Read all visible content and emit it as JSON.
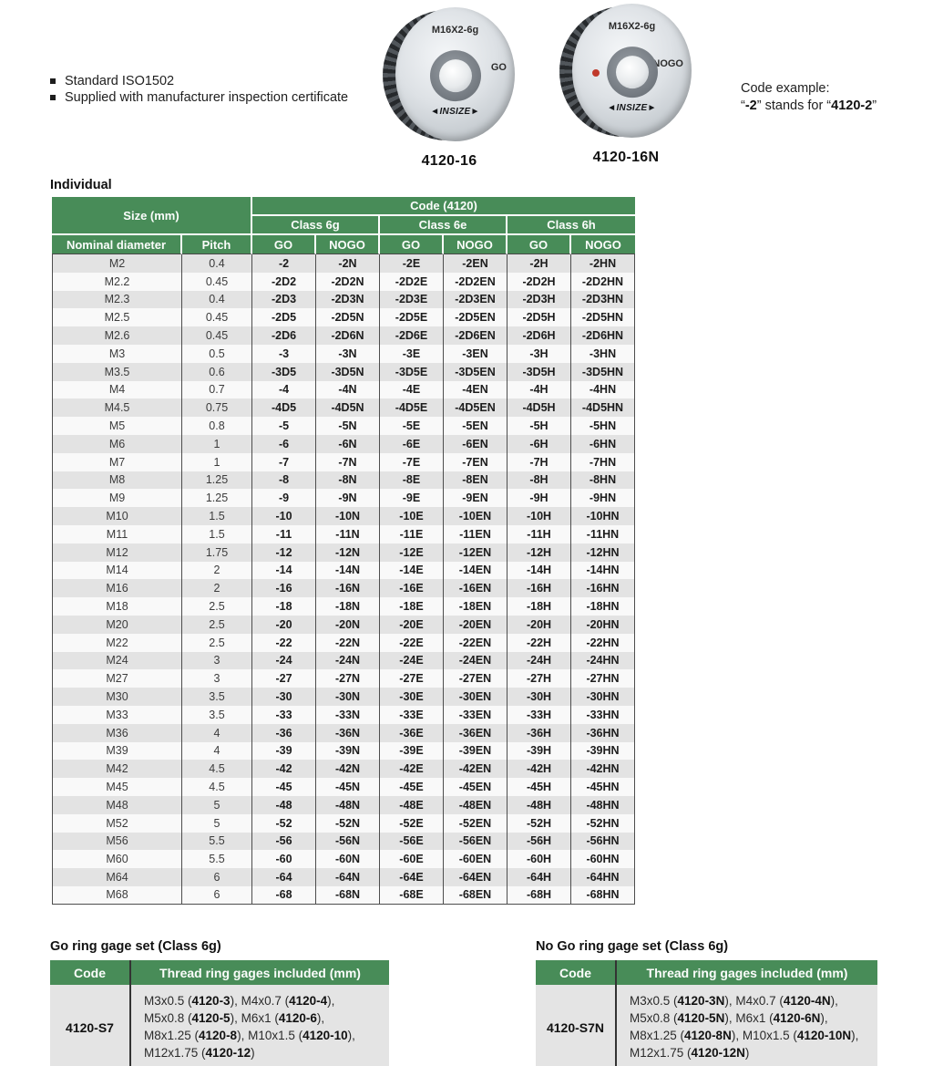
{
  "colors": {
    "header_green": "#488c58",
    "row_alt_gray": "#e3e3e3",
    "set_body_gray": "#e4e4e4",
    "red_dot": "#c0392b"
  },
  "bullets": {
    "items": [
      "Standard ISO1502",
      "Supplied with manufacturer inspection certificate"
    ]
  },
  "products": [
    {
      "marking": "M16X2-6g",
      "side_label": "GO",
      "logo": "◄INSIZE►",
      "code": "4120-16"
    },
    {
      "marking": "M16X2-6g",
      "side_label": "NOGO",
      "logo": "◄INSIZE►",
      "code": "4120-16N"
    }
  ],
  "code_example": {
    "title": "Code example:",
    "segments": [
      {
        "t": "“"
      },
      {
        "t": "-2",
        "b": true
      },
      {
        "t": "” stands for “"
      },
      {
        "t": "4120-2",
        "b": true
      },
      {
        "t": "”"
      }
    ]
  },
  "individual_label": "Individual",
  "main_table": {
    "header": {
      "size_mm": "Size (mm)",
      "code_label": "Code (4120)",
      "classes": [
        "Class 6g",
        "Class 6e",
        "Class 6h"
      ],
      "sub_headers": [
        "Nominal diameter",
        "Pitch",
        "GO",
        "NOGO",
        "GO",
        "NOGO",
        "GO",
        "NOGO"
      ]
    },
    "rows": [
      [
        "M2",
        "0.4",
        "-2",
        "-2N",
        "-2E",
        "-2EN",
        "-2H",
        "-2HN"
      ],
      [
        "M2.2",
        "0.45",
        "-2D2",
        "-2D2N",
        "-2D2E",
        "-2D2EN",
        "-2D2H",
        "-2D2HN"
      ],
      [
        "M2.3",
        "0.4",
        "-2D3",
        "-2D3N",
        "-2D3E",
        "-2D3EN",
        "-2D3H",
        "-2D3HN"
      ],
      [
        "M2.5",
        "0.45",
        "-2D5",
        "-2D5N",
        "-2D5E",
        "-2D5EN",
        "-2D5H",
        "-2D5HN"
      ],
      [
        "M2.6",
        "0.45",
        "-2D6",
        "-2D6N",
        "-2D6E",
        "-2D6EN",
        "-2D6H",
        "-2D6HN"
      ],
      [
        "M3",
        "0.5",
        "-3",
        "-3N",
        "-3E",
        "-3EN",
        "-3H",
        "-3HN"
      ],
      [
        "M3.5",
        "0.6",
        "-3D5",
        "-3D5N",
        "-3D5E",
        "-3D5EN",
        "-3D5H",
        "-3D5HN"
      ],
      [
        "M4",
        "0.7",
        "-4",
        "-4N",
        "-4E",
        "-4EN",
        "-4H",
        "-4HN"
      ],
      [
        "M4.5",
        "0.75",
        "-4D5",
        "-4D5N",
        "-4D5E",
        "-4D5EN",
        "-4D5H",
        "-4D5HN"
      ],
      [
        "M5",
        "0.8",
        "-5",
        "-5N",
        "-5E",
        "-5EN",
        "-5H",
        "-5HN"
      ],
      [
        "M6",
        "1",
        "-6",
        "-6N",
        "-6E",
        "-6EN",
        "-6H",
        "-6HN"
      ],
      [
        "M7",
        "1",
        "-7",
        "-7N",
        "-7E",
        "-7EN",
        "-7H",
        "-7HN"
      ],
      [
        "M8",
        "1.25",
        "-8",
        "-8N",
        "-8E",
        "-8EN",
        "-8H",
        "-8HN"
      ],
      [
        "M9",
        "1.25",
        "-9",
        "-9N",
        "-9E",
        "-9EN",
        "-9H",
        "-9HN"
      ],
      [
        "M10",
        "1.5",
        "-10",
        "-10N",
        "-10E",
        "-10EN",
        "-10H",
        "-10HN"
      ],
      [
        "M11",
        "1.5",
        "-11",
        "-11N",
        "-11E",
        "-11EN",
        "-11H",
        "-11HN"
      ],
      [
        "M12",
        "1.75",
        "-12",
        "-12N",
        "-12E",
        "-12EN",
        "-12H",
        "-12HN"
      ],
      [
        "M14",
        "2",
        "-14",
        "-14N",
        "-14E",
        "-14EN",
        "-14H",
        "-14HN"
      ],
      [
        "M16",
        "2",
        "-16",
        "-16N",
        "-16E",
        "-16EN",
        "-16H",
        "-16HN"
      ],
      [
        "M18",
        "2.5",
        "-18",
        "-18N",
        "-18E",
        "-18EN",
        "-18H",
        "-18HN"
      ],
      [
        "M20",
        "2.5",
        "-20",
        "-20N",
        "-20E",
        "-20EN",
        "-20H",
        "-20HN"
      ],
      [
        "M22",
        "2.5",
        "-22",
        "-22N",
        "-22E",
        "-22EN",
        "-22H",
        "-22HN"
      ],
      [
        "M24",
        "3",
        "-24",
        "-24N",
        "-24E",
        "-24EN",
        "-24H",
        "-24HN"
      ],
      [
        "M27",
        "3",
        "-27",
        "-27N",
        "-27E",
        "-27EN",
        "-27H",
        "-27HN"
      ],
      [
        "M30",
        "3.5",
        "-30",
        "-30N",
        "-30E",
        "-30EN",
        "-30H",
        "-30HN"
      ],
      [
        "M33",
        "3.5",
        "-33",
        "-33N",
        "-33E",
        "-33EN",
        "-33H",
        "-33HN"
      ],
      [
        "M36",
        "4",
        "-36",
        "-36N",
        "-36E",
        "-36EN",
        "-36H",
        "-36HN"
      ],
      [
        "M39",
        "4",
        "-39",
        "-39N",
        "-39E",
        "-39EN",
        "-39H",
        "-39HN"
      ],
      [
        "M42",
        "4.5",
        "-42",
        "-42N",
        "-42E",
        "-42EN",
        "-42H",
        "-42HN"
      ],
      [
        "M45",
        "4.5",
        "-45",
        "-45N",
        "-45E",
        "-45EN",
        "-45H",
        "-45HN"
      ],
      [
        "M48",
        "5",
        "-48",
        "-48N",
        "-48E",
        "-48EN",
        "-48H",
        "-48HN"
      ],
      [
        "M52",
        "5",
        "-52",
        "-52N",
        "-52E",
        "-52EN",
        "-52H",
        "-52HN"
      ],
      [
        "M56",
        "5.5",
        "-56",
        "-56N",
        "-56E",
        "-56EN",
        "-56H",
        "-56HN"
      ],
      [
        "M60",
        "5.5",
        "-60",
        "-60N",
        "-60E",
        "-60EN",
        "-60H",
        "-60HN"
      ],
      [
        "M64",
        "6",
        "-64",
        "-64N",
        "-64E",
        "-64EN",
        "-64H",
        "-64HN"
      ],
      [
        "M68",
        "6",
        "-68",
        "-68N",
        "-68E",
        "-68EN",
        "-68H",
        "-68HN"
      ]
    ]
  },
  "go_set": {
    "title": "Go ring gage set (Class 6g)",
    "code_header": "Code",
    "included_header": "Thread ring gages included (mm)",
    "code": "4120-S7",
    "lines": [
      [
        {
          "t": "M3x0.5 ("
        },
        {
          "t": "4120-3",
          "b": true
        },
        {
          "t": "), M4x0.7 ("
        },
        {
          "t": "4120-4",
          "b": true
        },
        {
          "t": "),"
        }
      ],
      [
        {
          "t": "M5x0.8 ("
        },
        {
          "t": "4120-5",
          "b": true
        },
        {
          "t": "), M6x1 ("
        },
        {
          "t": "4120-6",
          "b": true
        },
        {
          "t": "),"
        }
      ],
      [
        {
          "t": "M8x1.25 ("
        },
        {
          "t": "4120-8",
          "b": true
        },
        {
          "t": "), M10x1.5 ("
        },
        {
          "t": "4120-10",
          "b": true
        },
        {
          "t": "),"
        }
      ],
      [
        {
          "t": "M12x1.75 ("
        },
        {
          "t": "4120-12",
          "b": true
        },
        {
          "t": ")"
        }
      ]
    ]
  },
  "nogo_set": {
    "title": "No Go ring gage set (Class 6g)",
    "code_header": "Code",
    "included_header": "Thread ring gages included (mm)",
    "code": "4120-S7N",
    "lines": [
      [
        {
          "t": "M3x0.5 ("
        },
        {
          "t": "4120-3N",
          "b": true
        },
        {
          "t": "), M4x0.7 ("
        },
        {
          "t": "4120-4N",
          "b": true
        },
        {
          "t": "),"
        }
      ],
      [
        {
          "t": "M5x0.8 ("
        },
        {
          "t": "4120-5N",
          "b": true
        },
        {
          "t": "), M6x1 ("
        },
        {
          "t": "4120-6N",
          "b": true
        },
        {
          "t": "),"
        }
      ],
      [
        {
          "t": "M8x1.25 ("
        },
        {
          "t": "4120-8N",
          "b": true
        },
        {
          "t": "), M10x1.5 ("
        },
        {
          "t": "4120-10N",
          "b": true
        },
        {
          "t": "),"
        }
      ],
      [
        {
          "t": "M12x1.75 ("
        },
        {
          "t": "4120-12N",
          "b": true
        },
        {
          "t": ")"
        }
      ]
    ]
  }
}
